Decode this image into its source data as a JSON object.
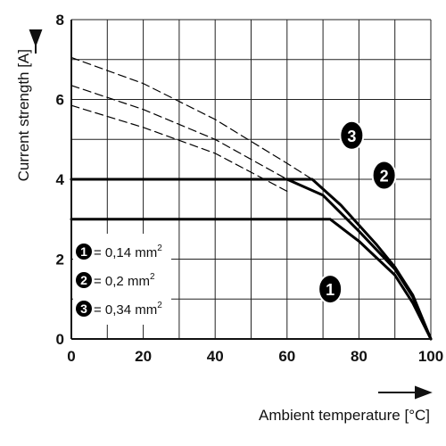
{
  "chart_data": {
    "type": "line",
    "title": "",
    "xlabel": "Ambient temperature [°C]",
    "ylabel": "Current strength [A]",
    "xlim": [
      0,
      100
    ],
    "ylim": [
      0,
      8
    ],
    "xticks": [
      0,
      20,
      40,
      60,
      80,
      100
    ],
    "yticks": [
      0,
      2,
      4,
      6,
      8
    ],
    "grid": true,
    "grid_x_step": 10,
    "grid_y_step": 1,
    "legend_placement": "bottom-left",
    "legend": [
      {
        "marker": "1",
        "text": "= 0,14 mm",
        "sup": "2"
      },
      {
        "marker": "2",
        "text": "= 0,2 mm",
        "sup": "2"
      },
      {
        "marker": "3",
        "text": "= 0,34 mm",
        "sup": "2"
      }
    ],
    "series": [
      {
        "marker": "1",
        "style": "solid",
        "x": [
          0,
          72,
          80,
          90,
          95,
          100
        ],
        "y": [
          3,
          3,
          2.45,
          1.6,
          0.9,
          0
        ]
      },
      {
        "marker": "2",
        "style": "solid",
        "x": [
          0,
          60,
          70,
          80,
          90,
          95,
          100
        ],
        "y": [
          4,
          4,
          3.6,
          2.7,
          1.75,
          1.05,
          0
        ]
      },
      {
        "marker": "3",
        "style": "solid",
        "x": [
          0,
          67,
          75,
          85,
          90,
          95,
          100
        ],
        "y": [
          4,
          4,
          3.35,
          2.35,
          1.8,
          1.1,
          0
        ]
      },
      {
        "marker": "1",
        "style": "dashed",
        "x": [
          0,
          20,
          40,
          60
        ],
        "y": [
          5.85,
          5.3,
          4.65,
          3.7
        ]
      },
      {
        "marker": "2",
        "style": "dashed",
        "x": [
          0,
          20,
          40,
          60
        ],
        "y": [
          6.35,
          5.75,
          5.0,
          4.0
        ]
      },
      {
        "marker": "3",
        "style": "dashed",
        "x": [
          0,
          20,
          40,
          60,
          67
        ],
        "y": [
          7.05,
          6.4,
          5.5,
          4.4,
          4.0
        ]
      }
    ],
    "callouts": [
      {
        "marker": "3",
        "x": 78,
        "y": 5.1
      },
      {
        "marker": "2",
        "x": 87,
        "y": 4.1
      },
      {
        "marker": "1",
        "x": 72,
        "y": 1.25
      }
    ]
  }
}
